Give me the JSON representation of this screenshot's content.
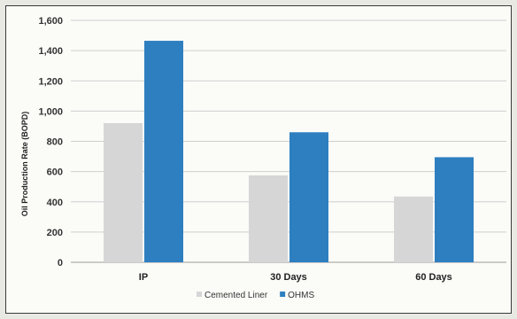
{
  "chart_data": {
    "type": "bar",
    "title": "",
    "xlabel": "",
    "ylabel": "Oil Production Rate (BOPD)",
    "categories": [
      "IP",
      "30 Days",
      "60 Days"
    ],
    "series": [
      {
        "name": "Cemented Liner",
        "values": [
          920,
          575,
          435
        ],
        "color": "#d6d6d6"
      },
      {
        "name": "OHMS",
        "values": [
          1465,
          860,
          695
        ],
        "color": "#2e7fc0"
      }
    ],
    "ylim": [
      0,
      1600
    ],
    "yticks": [
      0,
      200,
      400,
      600,
      800,
      1000,
      1200,
      1400,
      1600
    ],
    "ytick_labels": [
      "0",
      "200",
      "400",
      "600",
      "800",
      "1,000",
      "1,200",
      "1,400",
      "1,600"
    ],
    "grid": true,
    "legend_position": "bottom"
  }
}
